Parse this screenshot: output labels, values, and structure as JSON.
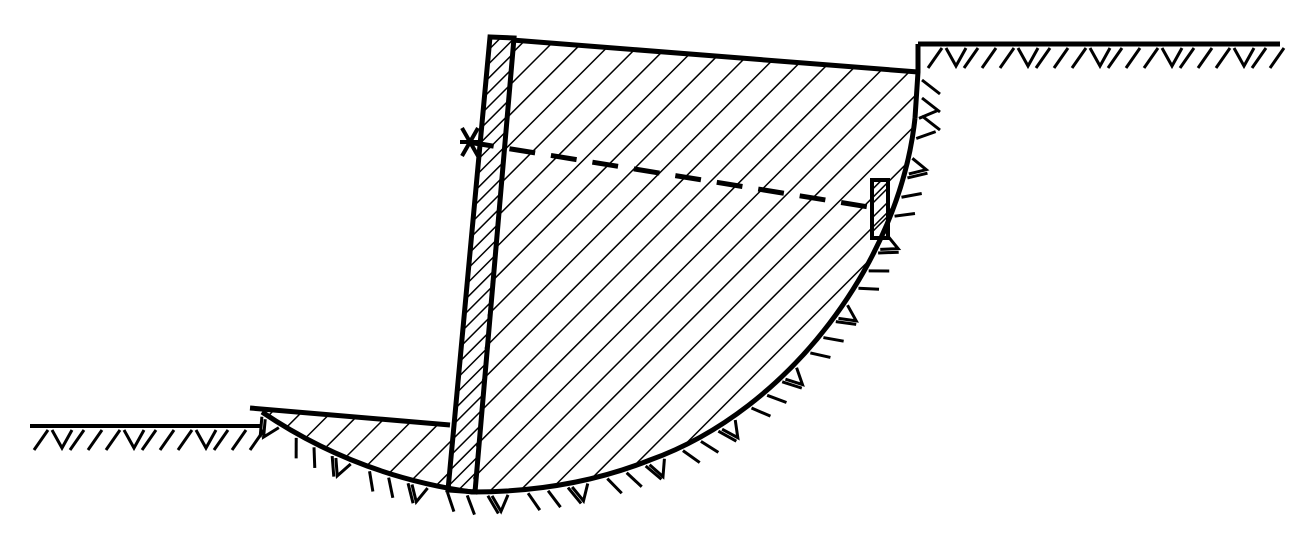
{
  "diagram": {
    "type": "retaining-wall-slip-circle",
    "components": [
      "ground-surface-left",
      "ground-surface-right",
      "retaining-wall",
      "soil-wedge",
      "slip-surface",
      "anchor-tie",
      "anchor-plate",
      "soil-hatching"
    ]
  },
  "colors": {
    "ink": "#000000",
    "background": "#ffffff"
  }
}
